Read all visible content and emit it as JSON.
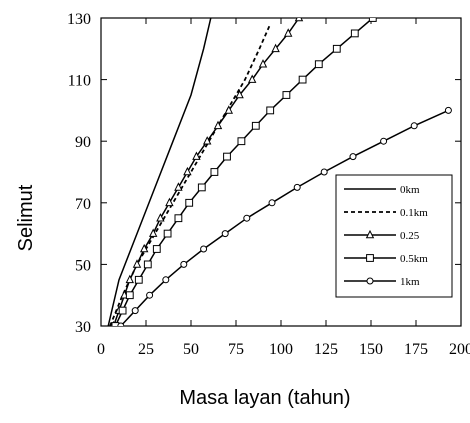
{
  "chart_data": {
    "type": "line",
    "xlabel": "Masa layan (tahun)",
    "ylabel": "Selimut",
    "xlim": [
      0,
      200
    ],
    "ylim": [
      30,
      130
    ],
    "x_ticks": [
      "0",
      "25",
      "50",
      "75",
      "100",
      "125",
      "150",
      "175",
      "200"
    ],
    "y_ticks": [
      "30",
      "50",
      "70",
      "90",
      "110",
      "130"
    ],
    "grid": false,
    "legend_position": "lower-right",
    "series": [
      {
        "name": "0km",
        "style": "solid",
        "marker": "none",
        "points": [
          [
            4,
            30
          ],
          [
            10,
            45
          ],
          [
            20,
            60
          ],
          [
            30,
            75
          ],
          [
            40,
            90
          ],
          [
            50,
            105
          ],
          [
            57,
            120
          ],
          [
            61,
            130
          ]
        ]
      },
      {
        "name": "0.1km",
        "style": "dashed",
        "marker": "none",
        "points": [
          [
            5,
            30
          ],
          [
            12,
            40
          ],
          [
            20,
            50
          ],
          [
            30,
            60
          ],
          [
            40,
            70
          ],
          [
            50,
            80
          ],
          [
            60,
            90
          ],
          [
            70,
            100
          ],
          [
            80,
            110
          ],
          [
            88,
            120
          ],
          [
            94,
            128
          ]
        ]
      },
      {
        "name": "0.25",
        "style": "solid",
        "marker": "triangle",
        "points": [
          [
            7,
            30
          ],
          [
            10,
            35
          ],
          [
            13,
            40
          ],
          [
            16,
            45
          ],
          [
            20,
            50
          ],
          [
            24,
            55
          ],
          [
            29,
            60
          ],
          [
            33,
            65
          ],
          [
            38,
            70
          ],
          [
            43,
            75
          ],
          [
            48,
            80
          ],
          [
            53,
            85
          ],
          [
            59,
            90
          ],
          [
            65,
            95
          ],
          [
            71,
            100
          ],
          [
            77,
            105
          ],
          [
            84,
            110
          ],
          [
            90,
            115
          ],
          [
            97,
            120
          ],
          [
            104,
            125
          ],
          [
            110,
            130
          ]
        ]
      },
      {
        "name": "0.5km",
        "style": "solid",
        "marker": "square",
        "points": [
          [
            8,
            30
          ],
          [
            12,
            35
          ],
          [
            16,
            40
          ],
          [
            21,
            45
          ],
          [
            26,
            50
          ],
          [
            31,
            55
          ],
          [
            37,
            60
          ],
          [
            43,
            65
          ],
          [
            49,
            70
          ],
          [
            56,
            75
          ],
          [
            63,
            80
          ],
          [
            70,
            85
          ],
          [
            78,
            90
          ],
          [
            86,
            95
          ],
          [
            94,
            100
          ],
          [
            103,
            105
          ],
          [
            112,
            110
          ],
          [
            121,
            115
          ],
          [
            131,
            120
          ],
          [
            141,
            125
          ],
          [
            151,
            130
          ]
        ]
      },
      {
        "name": "1km",
        "style": "solid",
        "marker": "circle",
        "points": [
          [
            11,
            30
          ],
          [
            19,
            35
          ],
          [
            27,
            40
          ],
          [
            36,
            45
          ],
          [
            46,
            50
          ],
          [
            57,
            55
          ],
          [
            69,
            60
          ],
          [
            81,
            65
          ],
          [
            95,
            70
          ],
          [
            109,
            75
          ],
          [
            124,
            80
          ],
          [
            140,
            85
          ],
          [
            157,
            90
          ],
          [
            174,
            95
          ],
          [
            193,
            100
          ]
        ]
      }
    ]
  }
}
